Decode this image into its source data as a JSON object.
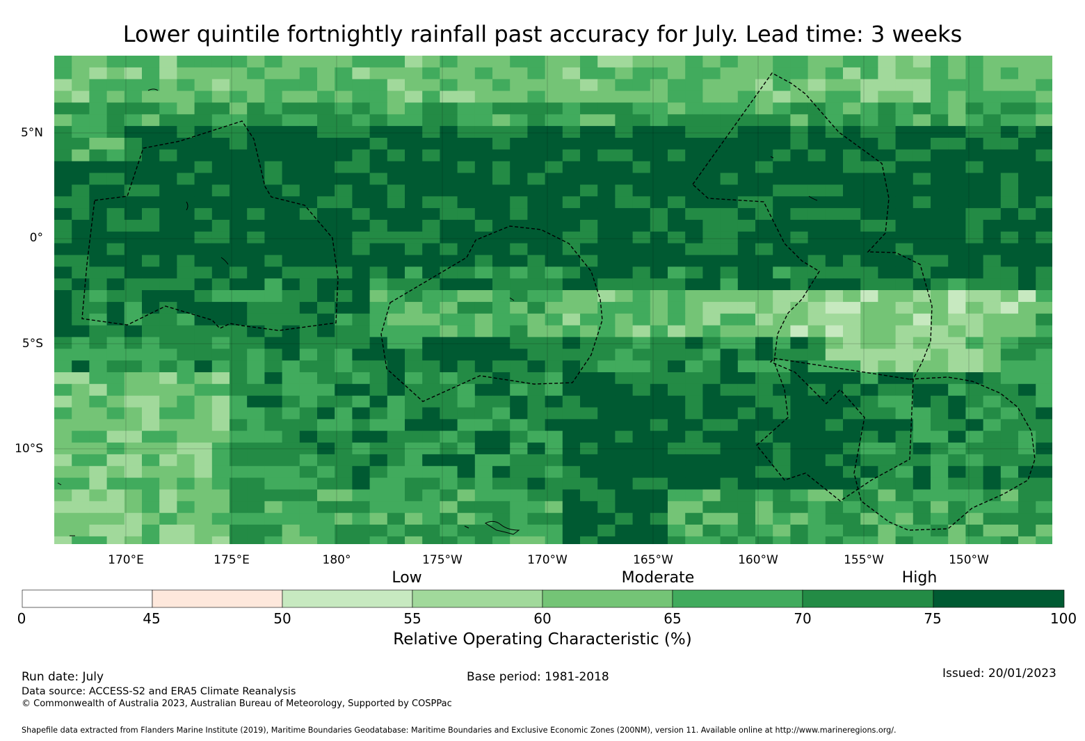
{
  "title": "Lower quintile fortnightly rainfall past accuracy for July. Lead time: 3 weeks",
  "map": {
    "lat_labels": [
      "5°N",
      "0°",
      "5°S",
      "10°S"
    ],
    "lon_labels": [
      "170°E",
      "175°E",
      "180°",
      "175°W",
      "170°W",
      "165°W",
      "160°W",
      "155°W",
      "150°W"
    ]
  },
  "colorbar": {
    "categories": [
      "Low",
      "Moderate",
      "High"
    ],
    "ticks": [
      "0",
      "45",
      "50",
      "55",
      "60",
      "65",
      "70",
      "75",
      "100"
    ],
    "colors": [
      "#ffffff",
      "#fee8dc",
      "#c7e9c0",
      "#a1d99b",
      "#74c476",
      "#41ab5d",
      "#238b45",
      "#005a32"
    ],
    "label": "Relative Operating Characteristic (%)"
  },
  "footer": {
    "run_date": "Run date: July",
    "base_period": "Base period: 1981-2018",
    "issued": "Issued: 20/01/2023",
    "data_source": "Data source: ACCESS-S2 and ERA5 Climate Reanalysis",
    "copyright": "© Commonwealth of Australia 2023, Australian Bureau of Meteorology, Supported by COSPPac",
    "shapefile": "Shapefile data extracted from Flanders Marine Institute (2019), Maritime Boundaries Geodatabase: Maritime Boundaries and Exclusive Economic Zones (200NM), version 11. Available online at http://www.marineregions.org/."
  }
}
